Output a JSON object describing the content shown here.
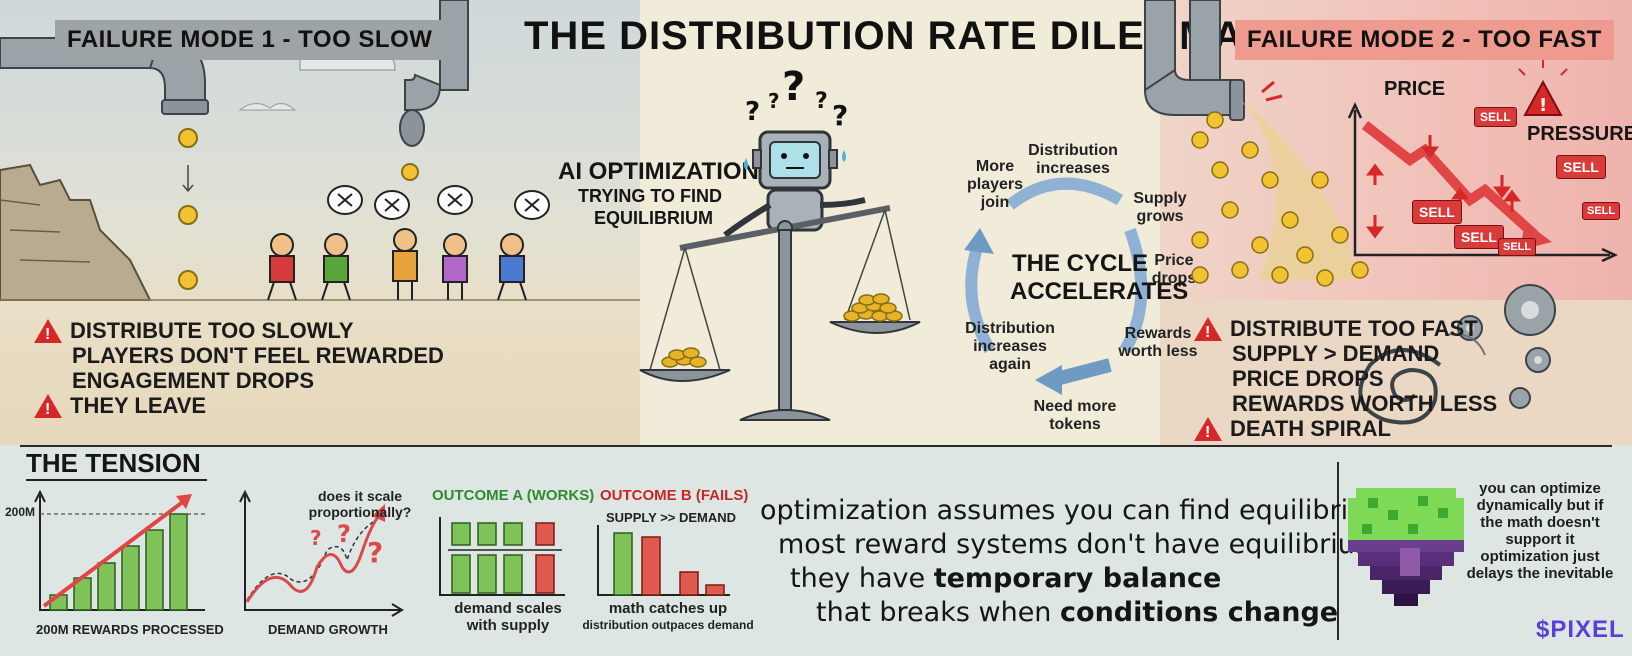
{
  "title": "THE DISTRIBUTION RATE DILEMMA",
  "failure_mode_1": {
    "label": "FAILURE MODE 1 - TOO SLOW",
    "lines": [
      "DISTRIBUTE TOO SLOWLY",
      "PLAYERS DON'T FEEL REWARDED",
      "ENGAGEMENT DROPS",
      "THEY LEAVE"
    ]
  },
  "failure_mode_2": {
    "label": "FAILURE MODE 2 - TOO FAST",
    "lines": [
      "DISTRIBUTE TOO FAST",
      "SUPPLY > DEMAND",
      "PRICE DROPS",
      "REWARDS WORTH LESS",
      "DEATH SPIRAL"
    ],
    "chart": {
      "y_label": "PRICE",
      "pressure_label": "PRESSURE",
      "sell_label": "SELL"
    }
  },
  "ai": {
    "title": "AI OPTIMIZATION",
    "subtitle_1": "TRYING TO FIND",
    "subtitle_2": "EQUILIBRIUM",
    "thought": "? ? ? ?"
  },
  "cycle": {
    "center_1": "THE CYCLE",
    "center_2": "ACCELERATES",
    "steps": [
      "Distribution increases",
      "Supply grows",
      "Price drops",
      "Rewards worth less",
      "Need more tokens",
      "Distribution increases again",
      "More players join"
    ]
  },
  "tension": {
    "heading": "THE TENSION",
    "chart1": {
      "y_tick": "200M",
      "caption": "200M REWARDS PROCESSED"
    },
    "chart2": {
      "question": "does it scale proportionally?",
      "caption": "DEMAND GROWTH"
    },
    "chart3": {
      "title": "OUTCOME A (WORKS)",
      "caption_1": "demand scales",
      "caption_2": "with supply",
      "color": "#2e8b2e"
    },
    "chart4": {
      "title": "OUTCOME B (FAILS)",
      "subtitle": "SUPPLY >> DEMAND",
      "caption_1": "math catches up",
      "caption_2": "distribution outpaces demand",
      "color": "#c62828"
    }
  },
  "quote": {
    "line1": "optimization assumes you can find equilibrium",
    "line2": "most reward systems don't have equilibrium",
    "line3a": "they have ",
    "line3b": "temporary balance",
    "line4a": "that breaks when ",
    "line4b": "conditions change"
  },
  "note": {
    "lines": [
      "you can optimize",
      "dynamically but if",
      "the math doesn't",
      "support it",
      "optimization just",
      "delays the inevitable"
    ]
  },
  "brand": "$PIXEL",
  "colors": {
    "green": "#7fc25a",
    "red": "#e05a4f",
    "accent_red": "#d62828",
    "brand_purple": "#5b3fd6"
  }
}
